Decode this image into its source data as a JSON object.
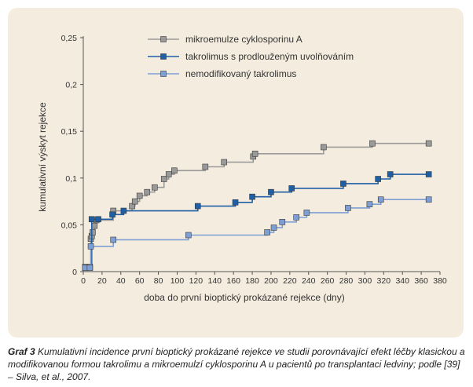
{
  "chart_data": {
    "type": "line",
    "step": true,
    "xlabel": "doba do první bioptický prokázané rejekce (dny)",
    "ylabel": "kumulativní výskyt rejekce",
    "xlim": [
      0,
      380
    ],
    "ylim": [
      0,
      0.25
    ],
    "x_ticks": [
      0,
      20,
      40,
      60,
      80,
      100,
      120,
      140,
      160,
      180,
      200,
      220,
      240,
      260,
      280,
      300,
      320,
      340,
      360,
      380
    ],
    "y_ticks": [
      0,
      0.05,
      0.1,
      0.15,
      0.2,
      0.25
    ],
    "y_tick_labels": [
      "0",
      "0,05",
      "0,1",
      "0,15",
      "0,2",
      "0,25"
    ],
    "grid": false,
    "legend_position": "top-center",
    "series": [
      {
        "name": "mikroemulze cyklosporinu A",
        "color": "#9a9a9a",
        "points": [
          [
            2,
            0.005
          ],
          [
            7,
            0.005
          ],
          [
            8,
            0.035
          ],
          [
            9,
            0.038
          ],
          [
            10,
            0.042
          ],
          [
            12,
            0.049
          ],
          [
            14,
            0.055
          ],
          [
            32,
            0.065
          ],
          [
            52,
            0.07
          ],
          [
            55,
            0.075
          ],
          [
            60,
            0.081
          ],
          [
            68,
            0.085
          ],
          [
            76,
            0.09
          ],
          [
            86,
            0.099
          ],
          [
            91,
            0.104
          ],
          [
            97,
            0.108
          ],
          [
            130,
            0.112
          ],
          [
            150,
            0.117
          ],
          [
            181,
            0.123
          ],
          [
            183,
            0.126
          ],
          [
            256,
            0.133
          ],
          [
            308,
            0.137
          ],
          [
            368,
            0.137
          ]
        ]
      },
      {
        "name": "takrolimus s prodlouženým uvolňováním",
        "color": "#1f5fa6",
        "points": [
          [
            2,
            0.004
          ],
          [
            7,
            0.004
          ],
          [
            9,
            0.056
          ],
          [
            16,
            0.056
          ],
          [
            31,
            0.061
          ],
          [
            43,
            0.065
          ],
          [
            122,
            0.07
          ],
          [
            162,
            0.074
          ],
          [
            180,
            0.08
          ],
          [
            200,
            0.085
          ],
          [
            222,
            0.089
          ],
          [
            277,
            0.094
          ],
          [
            314,
            0.099
          ],
          [
            327,
            0.104
          ],
          [
            368,
            0.104
          ]
        ]
      },
      {
        "name": "nemodifikovaný takrolimus",
        "color": "#7d9fd6",
        "points": [
          [
            2,
            0.004
          ],
          [
            7,
            0.004
          ],
          [
            8,
            0.027
          ],
          [
            32,
            0.034
          ],
          [
            112,
            0.039
          ],
          [
            196,
            0.042
          ],
          [
            203,
            0.047
          ],
          [
            212,
            0.053
          ],
          [
            227,
            0.058
          ],
          [
            238,
            0.063
          ],
          [
            282,
            0.068
          ],
          [
            305,
            0.072
          ],
          [
            317,
            0.077
          ],
          [
            368,
            0.077
          ]
        ]
      }
    ]
  },
  "caption": {
    "label": "Graf 3",
    "text": " Kumulativní incidence první bioptický prokázané rejekce ve studii porovnávající efekt léčby klasickou a modifikovanou formou takrolimu a mikroemulzí cyklosporinu A u pacientů po transplantaci ledviny; podle [39] – Silva, et al., 2007."
  }
}
